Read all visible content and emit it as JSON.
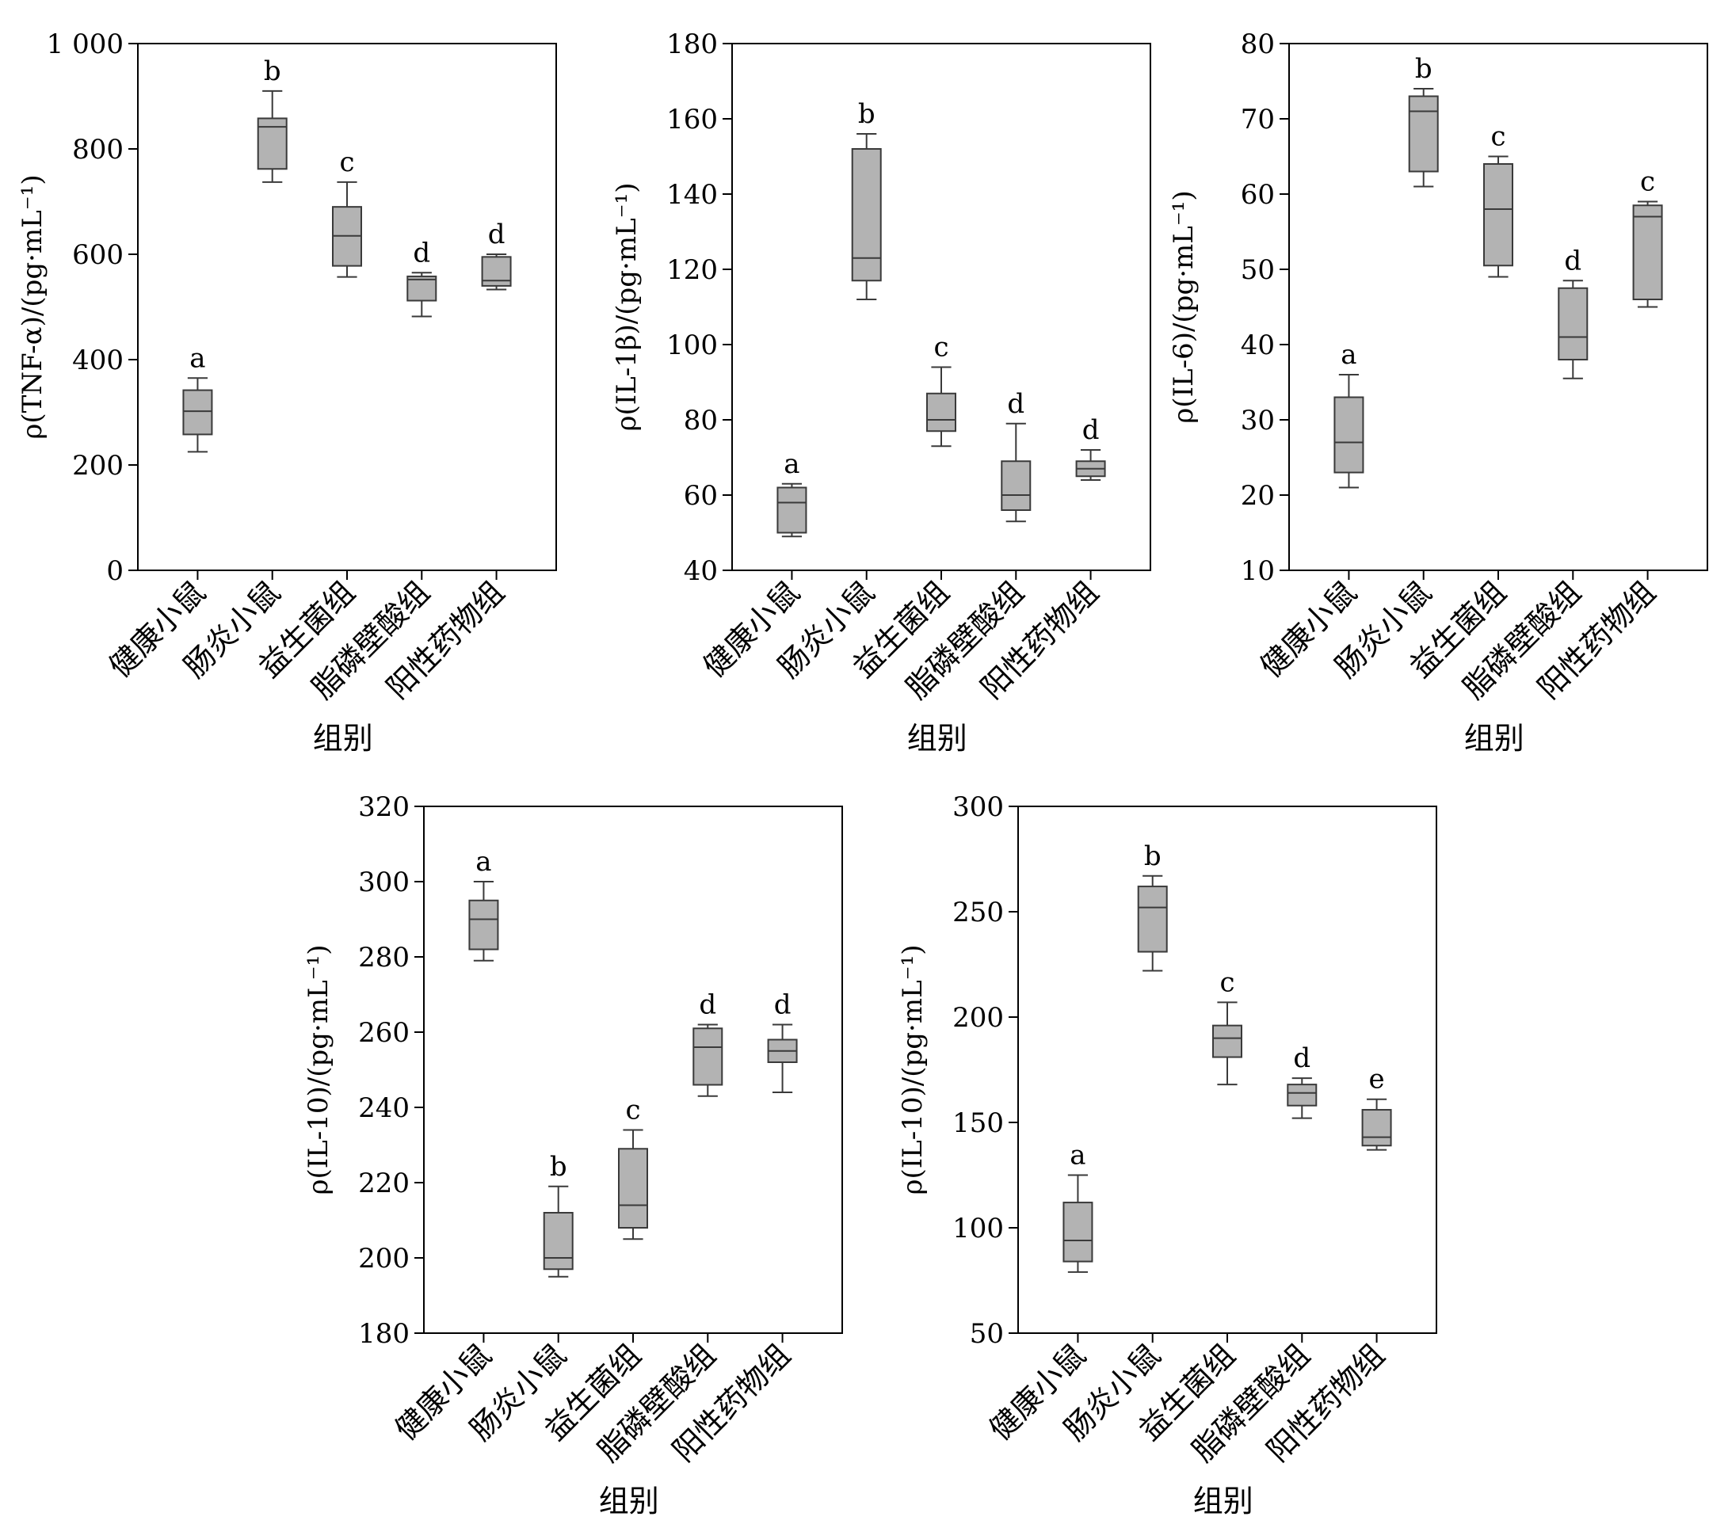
{
  "chart_data": [
    {
      "type": "box",
      "ylabel": "ρ(TNF-α)/(pg·mL⁻¹)",
      "xlabel": "组别",
      "ylim": [
        0,
        1000
      ],
      "yticks": [
        0,
        200,
        400,
        600,
        800,
        1000
      ],
      "ytick_labels": [
        "0",
        "200",
        "400",
        "600",
        "800",
        "1 000"
      ],
      "categories": [
        "健康小鼠",
        "肠炎小鼠",
        "益生菌组",
        "脂磷壁酸组",
        "阳性药物组"
      ],
      "boxes": [
        {
          "min": 225,
          "q1": 258,
          "median": 302,
          "q3": 342,
          "max": 365
        },
        {
          "min": 737,
          "q1": 762,
          "median": 842,
          "q3": 858,
          "max": 910
        },
        {
          "min": 557,
          "q1": 578,
          "median": 635,
          "q3": 690,
          "max": 737
        },
        {
          "min": 482,
          "q1": 512,
          "median": 552,
          "q3": 558,
          "max": 565
        },
        {
          "min": 533,
          "q1": 540,
          "median": 550,
          "q3": 595,
          "max": 600
        }
      ],
      "significance": [
        "a",
        "b",
        "c",
        "d",
        "d"
      ]
    },
    {
      "type": "box",
      "ylabel": "ρ(IL-1β)/(pg·mL⁻¹)",
      "xlabel": "组别",
      "ylim": [
        40,
        180
      ],
      "yticks": [
        40,
        60,
        80,
        100,
        120,
        140,
        160,
        180
      ],
      "ytick_labels": [
        "40",
        "60",
        "80",
        "100",
        "120",
        "140",
        "160",
        "180"
      ],
      "categories": [
        "健康小鼠",
        "肠炎小鼠",
        "益生菌组",
        "脂磷壁酸组",
        "阳性药物组"
      ],
      "boxes": [
        {
          "min": 49,
          "q1": 50,
          "median": 58,
          "q3": 62,
          "max": 63
        },
        {
          "min": 112,
          "q1": 117,
          "median": 123,
          "q3": 152,
          "max": 156
        },
        {
          "min": 73,
          "q1": 77,
          "median": 80,
          "q3": 87,
          "max": 94
        },
        {
          "min": 53,
          "q1": 56,
          "median": 60,
          "q3": 69,
          "max": 79
        },
        {
          "min": 64,
          "q1": 65,
          "median": 67,
          "q3": 69,
          "max": 72
        }
      ],
      "significance": [
        "a",
        "b",
        "c",
        "d",
        "d"
      ]
    },
    {
      "type": "box",
      "ylabel": "ρ(IL-6)/(pg·mL⁻¹)",
      "xlabel": "组别",
      "ylim": [
        10,
        80
      ],
      "yticks": [
        10,
        20,
        30,
        40,
        50,
        60,
        70,
        80
      ],
      "ytick_labels": [
        "10",
        "20",
        "30",
        "40",
        "50",
        "60",
        "70",
        "80"
      ],
      "categories": [
        "健康小鼠",
        "肠炎小鼠",
        "益生菌组",
        "脂磷壁酸组",
        "阳性药物组"
      ],
      "boxes": [
        {
          "min": 21,
          "q1": 23,
          "median": 27,
          "q3": 33,
          "max": 36
        },
        {
          "min": 61,
          "q1": 63,
          "median": 71,
          "q3": 73,
          "max": 74
        },
        {
          "min": 49,
          "q1": 50.5,
          "median": 58,
          "q3": 64,
          "max": 65
        },
        {
          "min": 35.5,
          "q1": 38,
          "median": 41,
          "q3": 47.5,
          "max": 48.5
        },
        {
          "min": 45,
          "q1": 46,
          "median": 57,
          "q3": 58.5,
          "max": 59
        }
      ],
      "significance": [
        "a",
        "b",
        "c",
        "d",
        "c"
      ]
    },
    {
      "type": "box",
      "ylabel": "ρ(IL-10)/(pg·mL⁻¹)",
      "xlabel": "组别",
      "ylim": [
        180,
        320
      ],
      "yticks": [
        180,
        200,
        220,
        240,
        260,
        280,
        300,
        320
      ],
      "ytick_labels": [
        "180",
        "200",
        "220",
        "240",
        "260",
        "280",
        "300",
        "320"
      ],
      "categories": [
        "健康小鼠",
        "肠炎小鼠",
        "益生菌组",
        "脂磷壁酸组",
        "阳性药物组"
      ],
      "boxes": [
        {
          "min": 279,
          "q1": 282,
          "median": 290,
          "q3": 295,
          "max": 300
        },
        {
          "min": 195,
          "q1": 197,
          "median": 200,
          "q3": 212,
          "max": 219
        },
        {
          "min": 205,
          "q1": 208,
          "median": 214,
          "q3": 229,
          "max": 234
        },
        {
          "min": 243,
          "q1": 246,
          "median": 256,
          "q3": 261,
          "max": 262
        },
        {
          "min": 244,
          "q1": 252,
          "median": 255,
          "q3": 258,
          "max": 262
        }
      ],
      "significance": [
        "a",
        "b",
        "c",
        "d",
        "d"
      ]
    },
    {
      "type": "box",
      "ylabel": "ρ(IL-10)/(pg·mL⁻¹)",
      "xlabel": "组别",
      "ylim": [
        50,
        300
      ],
      "yticks": [
        50,
        100,
        150,
        200,
        250,
        300
      ],
      "ytick_labels": [
        "50",
        "100",
        "150",
        "200",
        "250",
        "300"
      ],
      "categories": [
        "健康小鼠",
        "肠炎小鼠",
        "益生菌组",
        "脂磷壁酸组",
        "阳性药物组"
      ],
      "boxes": [
        {
          "min": 79,
          "q1": 84,
          "median": 94,
          "q3": 112,
          "max": 125
        },
        {
          "min": 222,
          "q1": 231,
          "median": 252,
          "q3": 262,
          "max": 267
        },
        {
          "min": 168,
          "q1": 181,
          "median": 190,
          "q3": 196,
          "max": 207
        },
        {
          "min": 152,
          "q1": 158,
          "median": 164,
          "q3": 168,
          "max": 171
        },
        {
          "min": 137,
          "q1": 139,
          "median": 143,
          "q3": 156,
          "max": 161
        }
      ],
      "significance": [
        "a",
        "b",
        "c",
        "d",
        "e"
      ]
    }
  ],
  "colors": {
    "box_fill": "#b3b3b3",
    "box_stroke": "#3a3a3a",
    "axis": "#000000"
  }
}
